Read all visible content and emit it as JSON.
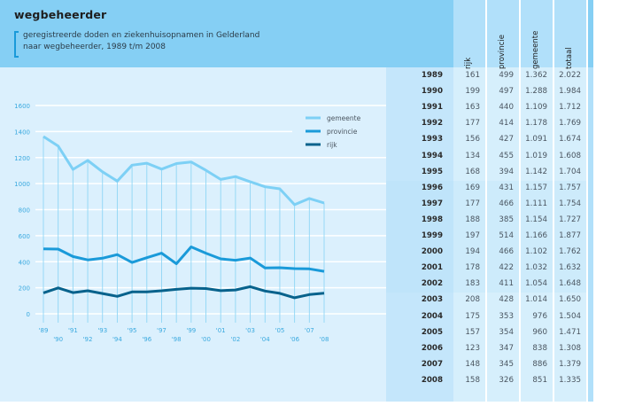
{
  "header": {
    "title": "wegbeheerder",
    "subtitle_line1": "geregistreerde doden en ziekenhuisopnamen in Gelderland",
    "subtitle_line2": "naar wegbeheerder, 1989 t/m 2008"
  },
  "colors": {
    "gemeente": "#7dd0f5",
    "provincie": "#1a9ad9",
    "rijk": "#07628c",
    "axis_text": "#3aa9df",
    "gridline": "#ffffff",
    "dropline": "#8fd6f5"
  },
  "table": {
    "columns": [
      "rijk",
      "provincie",
      "gemeente",
      "totaal"
    ],
    "rows": [
      {
        "year": "1989",
        "rijk": "161",
        "provincie": "499",
        "gemeente": "1.362",
        "totaal": "2.022"
      },
      {
        "year": "1990",
        "rijk": "199",
        "provincie": "497",
        "gemeente": "1.288",
        "totaal": "1.984"
      },
      {
        "year": "1991",
        "rijk": "163",
        "provincie": "440",
        "gemeente": "1.109",
        "totaal": "1.712"
      },
      {
        "year": "1992",
        "rijk": "177",
        "provincie": "414",
        "gemeente": "1.178",
        "totaal": "1.769"
      },
      {
        "year": "1993",
        "rijk": "156",
        "provincie": "427",
        "gemeente": "1.091",
        "totaal": "1.674"
      },
      {
        "year": "1994",
        "rijk": "134",
        "provincie": "455",
        "gemeente": "1.019",
        "totaal": "1.608"
      },
      {
        "year": "1995",
        "rijk": "168",
        "provincie": "394",
        "gemeente": "1.142",
        "totaal": "1.704"
      },
      {
        "year": "1996",
        "rijk": "169",
        "provincie": "431",
        "gemeente": "1.157",
        "totaal": "1.757"
      },
      {
        "year": "1997",
        "rijk": "177",
        "provincie": "466",
        "gemeente": "1.111",
        "totaal": "1.754"
      },
      {
        "year": "1998",
        "rijk": "188",
        "provincie": "385",
        "gemeente": "1.154",
        "totaal": "1.727"
      },
      {
        "year": "1999",
        "rijk": "197",
        "provincie": "514",
        "gemeente": "1.166",
        "totaal": "1.877"
      },
      {
        "year": "2000",
        "rijk": "194",
        "provincie": "466",
        "gemeente": "1.102",
        "totaal": "1.762"
      },
      {
        "year": "2001",
        "rijk": "178",
        "provincie": "422",
        "gemeente": "1.032",
        "totaal": "1.632"
      },
      {
        "year": "2002",
        "rijk": "183",
        "provincie": "411",
        "gemeente": "1.054",
        "totaal": "1.648"
      },
      {
        "year": "2003",
        "rijk": "208",
        "provincie": "428",
        "gemeente": "1.014",
        "totaal": "1.650"
      },
      {
        "year": "2004",
        "rijk": "175",
        "provincie": "353",
        "gemeente": "976",
        "totaal": "1.504"
      },
      {
        "year": "2005",
        "rijk": "157",
        "provincie": "354",
        "gemeente": "960",
        "totaal": "1.471"
      },
      {
        "year": "2006",
        "rijk": "123",
        "provincie": "347",
        "gemeente": "838",
        "totaal": "1.308"
      },
      {
        "year": "2007",
        "rijk": "148",
        "provincie": "345",
        "gemeente": "886",
        "totaal": "1.379"
      },
      {
        "year": "2008",
        "rijk": "158",
        "provincie": "326",
        "gemeente": "851",
        "totaal": "1.335"
      }
    ]
  },
  "chart_data": {
    "type": "line",
    "title": "wegbeheerder",
    "subtitle": "geregistreerde doden en ziekenhuisopnamen in Gelderland naar wegbeheerder, 1989 t/m 2008",
    "xlabel": "",
    "ylabel": "",
    "x": [
      1989,
      1990,
      1991,
      1992,
      1993,
      1994,
      1995,
      1996,
      1997,
      1998,
      1999,
      2000,
      2001,
      2002,
      2003,
      2004,
      2005,
      2006,
      2007,
      2008
    ],
    "x_tick_labels": [
      "'89",
      "'90",
      "'91",
      "'92",
      "'93",
      "'94",
      "'95",
      "'96",
      "'97",
      "'98",
      "'99",
      "'00",
      "'01",
      "'02",
      "'03",
      "'04",
      "'05",
      "'06",
      "'07",
      "'08"
    ],
    "y_ticks": [
      0,
      200,
      400,
      600,
      800,
      1000,
      1200,
      1400,
      1600
    ],
    "ylim": [
      0,
      1600
    ],
    "grid": "horizontal",
    "legend_position": "top-right",
    "series": [
      {
        "name": "gemeente",
        "values": [
          1362,
          1288,
          1109,
          1178,
          1091,
          1019,
          1142,
          1157,
          1111,
          1154,
          1166,
          1102,
          1032,
          1054,
          1014,
          976,
          960,
          838,
          886,
          851
        ]
      },
      {
        "name": "provincie",
        "values": [
          499,
          497,
          440,
          414,
          427,
          455,
          394,
          431,
          466,
          385,
          514,
          466,
          422,
          411,
          428,
          353,
          354,
          347,
          345,
          326
        ]
      },
      {
        "name": "rijk",
        "values": [
          161,
          199,
          163,
          177,
          156,
          134,
          168,
          169,
          177,
          188,
          197,
          194,
          178,
          183,
          208,
          175,
          157,
          123,
          148,
          158
        ]
      }
    ]
  }
}
